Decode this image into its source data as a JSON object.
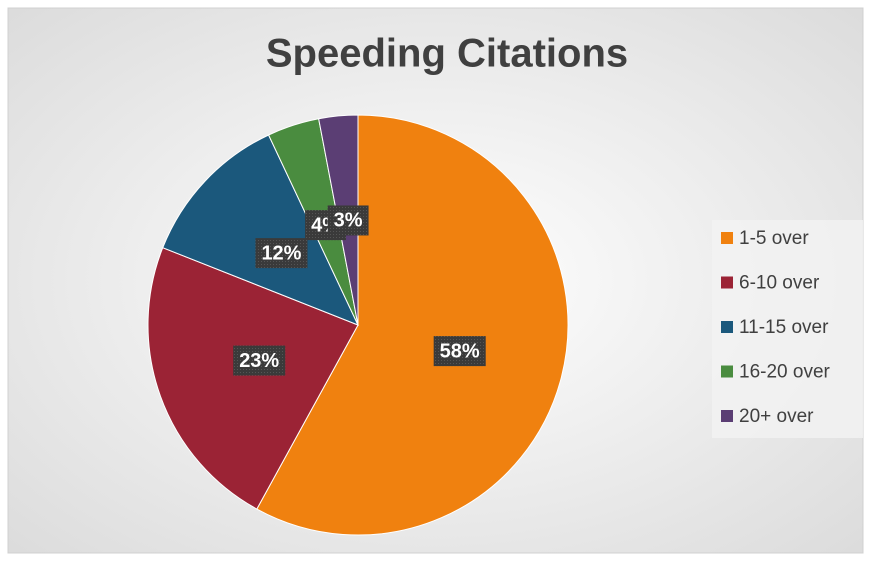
{
  "chart_data": {
    "type": "pie",
    "title": "Speeding Citations",
    "categories": [
      "1-5 over",
      "6-10 over",
      "11-15 over",
      "16-20 over",
      "20+ over"
    ],
    "values": [
      58,
      23,
      12,
      4,
      3
    ],
    "value_labels": [
      "58%",
      "23%",
      "12%",
      "4%",
      "3%"
    ],
    "colors": [
      "#f0810f",
      "#9b2335",
      "#1b587c",
      "#4a8c3f",
      "#5b3e74"
    ],
    "legend": "right"
  }
}
